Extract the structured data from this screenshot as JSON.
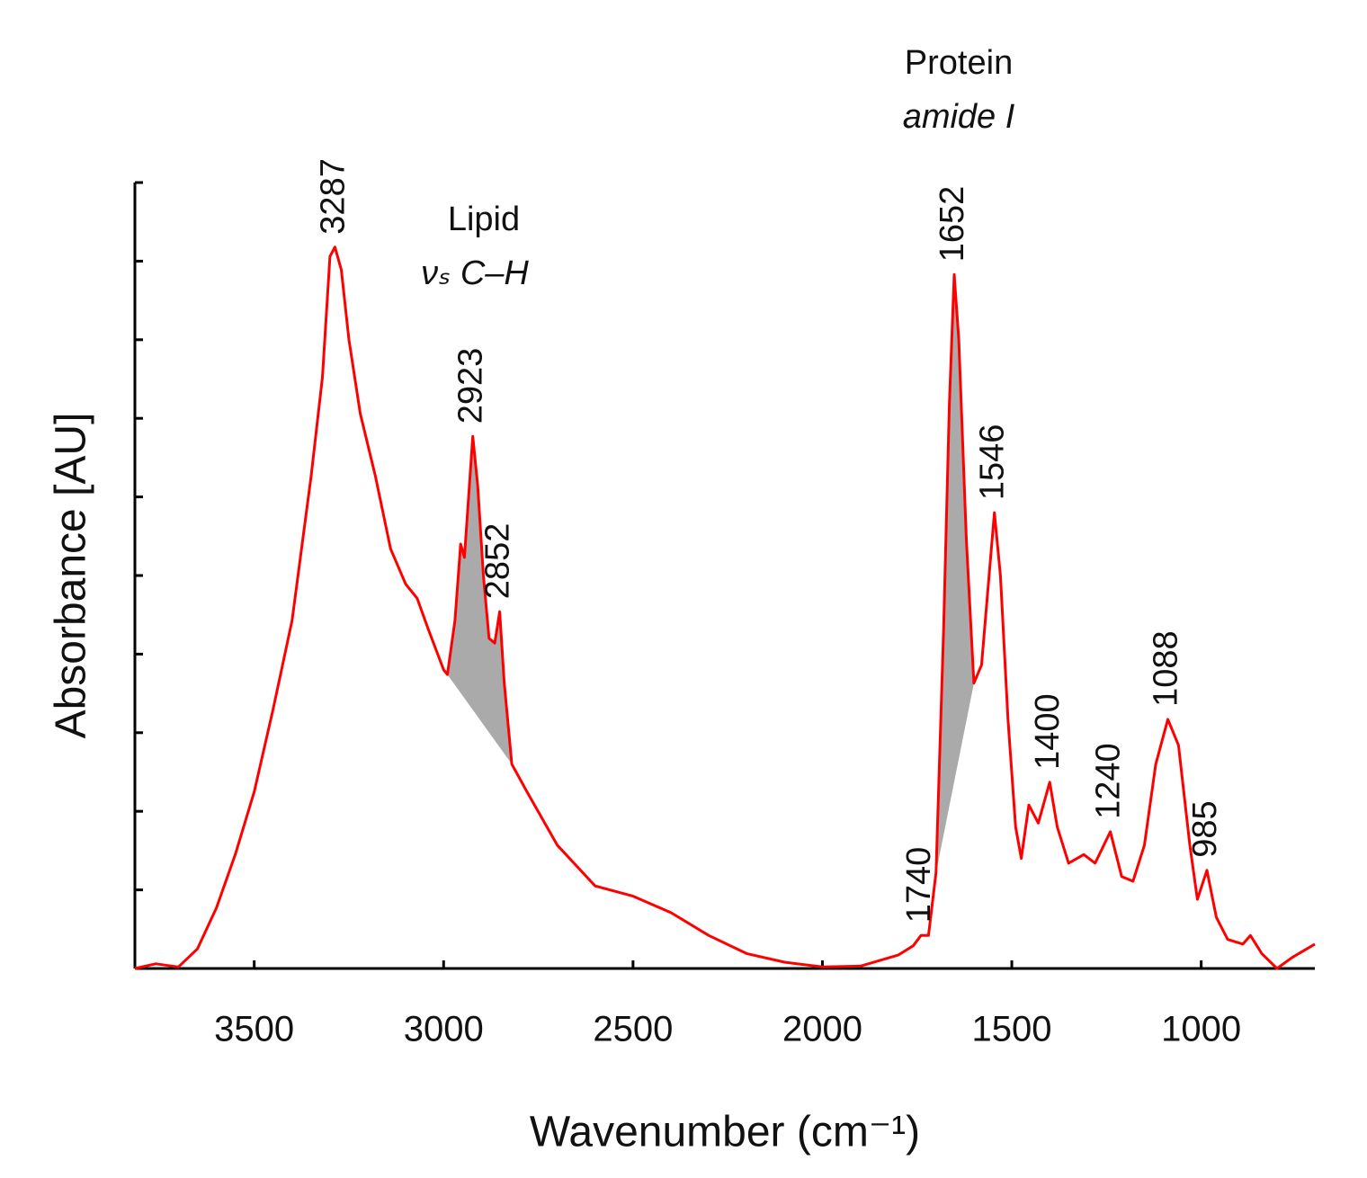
{
  "chart_data": {
    "type": "line",
    "xlabel": "Wavenumber (cm⁻¹)",
    "ylabel": "Absorbance [AU]",
    "color": "#ff0000",
    "shade_color": "#aaaaaa",
    "xlim": [
      3815,
      700
    ],
    "xticks": [
      3500,
      3000,
      2500,
      2000,
      1500,
      1000
    ],
    "ylim": [
      0,
      1
    ],
    "yticks": [
      0,
      0.1,
      0.2,
      0.3,
      0.4,
      0.5,
      0.6,
      0.7,
      0.8,
      0.9,
      1
    ],
    "x": [
      3815,
      3760,
      3700,
      3650,
      3600,
      3550,
      3500,
      3450,
      3400,
      3350,
      3320,
      3300,
      3287,
      3270,
      3250,
      3220,
      3180,
      3140,
      3100,
      3070,
      3040,
      3000,
      2990,
      2970,
      2955,
      2945,
      2923,
      2910,
      2895,
      2880,
      2865,
      2852,
      2840,
      2820,
      2780,
      2700,
      2600,
      2500,
      2400,
      2300,
      2200,
      2100,
      2000,
      1900,
      1800,
      1760,
      1740,
      1720,
      1700,
      1680,
      1665,
      1652,
      1640,
      1620,
      1600,
      1580,
      1560,
      1546,
      1530,
      1510,
      1490,
      1475,
      1455,
      1430,
      1400,
      1380,
      1350,
      1310,
      1280,
      1240,
      1210,
      1180,
      1150,
      1120,
      1088,
      1060,
      1030,
      1010,
      985,
      960,
      930,
      890,
      870,
      840,
      800,
      760,
      700
    ],
    "values": [
      0,
      0.006,
      0.002,
      0.025,
      0.077,
      0.145,
      0.225,
      0.33,
      0.443,
      0.626,
      0.752,
      0.906,
      0.918,
      0.889,
      0.8,
      0.706,
      0.626,
      0.534,
      0.489,
      0.471,
      0.431,
      0.38,
      0.374,
      0.443,
      0.54,
      0.523,
      0.677,
      0.614,
      0.5,
      0.42,
      0.414,
      0.454,
      0.363,
      0.26,
      0.225,
      0.157,
      0.105,
      0.092,
      0.071,
      0.042,
      0.019,
      0.008,
      0.002,
      0.003,
      0.017,
      0.029,
      0.042,
      0.042,
      0.122,
      0.431,
      0.717,
      0.883,
      0.8,
      0.546,
      0.363,
      0.386,
      0.5,
      0.58,
      0.5,
      0.317,
      0.18,
      0.14,
      0.208,
      0.185,
      0.237,
      0.18,
      0.134,
      0.145,
      0.134,
      0.174,
      0.117,
      0.111,
      0.157,
      0.26,
      0.317,
      0.284,
      0.157,
      0.088,
      0.125,
      0.065,
      0.037,
      0.031,
      0.042,
      0.019,
      0,
      0.014,
      0.031
    ],
    "shaded_regions": [
      [
        2990,
        2820
      ],
      [
        1700,
        1600
      ]
    ],
    "peak_labels": [
      3287,
      2923,
      2852,
      1740,
      1652,
      1546,
      1400,
      1240,
      1088,
      985
    ],
    "annotations": [
      {
        "lines": [
          "Lipid",
          "νₛ C–H"
        ]
      },
      {
        "lines": [
          "Protein",
          "amide I"
        ]
      }
    ]
  }
}
